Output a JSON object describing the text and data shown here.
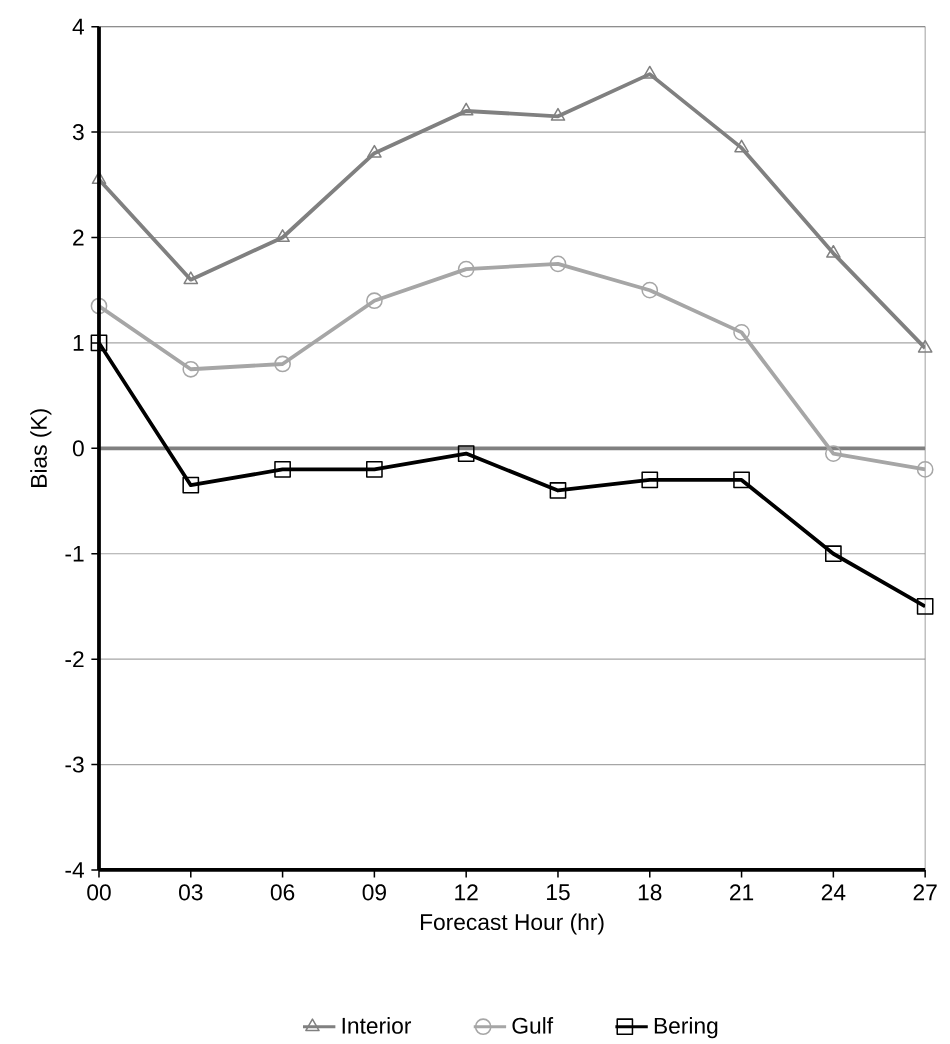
{
  "chart_data": {
    "type": "line",
    "xlabel": "Forecast Hour (hr)",
    "ylabel": "Bias (K)",
    "categories": [
      "00",
      "03",
      "06",
      "09",
      "12",
      "15",
      "18",
      "21",
      "24",
      "27"
    ],
    "series": [
      {
        "name": "Interior",
        "color": "#808080",
        "marker": "triangle",
        "values": [
          2.55,
          1.6,
          2.0,
          2.8,
          3.2,
          3.15,
          3.55,
          2.85,
          1.85,
          0.95
        ]
      },
      {
        "name": "Gulf",
        "color": "#a6a6a6",
        "marker": "circle",
        "values": [
          1.35,
          0.75,
          0.8,
          1.4,
          1.7,
          1.75,
          1.5,
          1.1,
          -0.05,
          -0.2
        ]
      },
      {
        "name": "Bering",
        "color": "#000000",
        "marker": "square",
        "values": [
          1.0,
          -0.35,
          -0.2,
          -0.2,
          -0.05,
          -0.4,
          -0.3,
          -0.3,
          -1.0,
          -1.5
        ]
      }
    ],
    "ylim": [
      -4,
      4
    ],
    "yticks": [
      -4,
      -3,
      -2,
      -1,
      0,
      1,
      2,
      3,
      4
    ],
    "grid": "y",
    "legend": "bottom",
    "ref_lines": [
      {
        "axis": "y",
        "value": 0,
        "color": "#808080"
      }
    ]
  }
}
